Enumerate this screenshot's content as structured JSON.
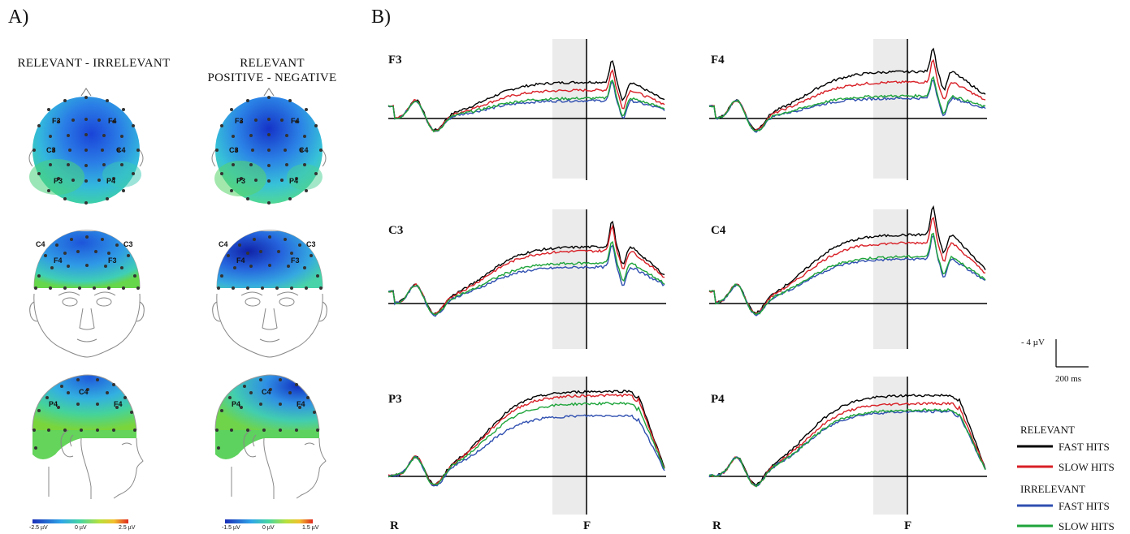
{
  "panel_a": {
    "label": "A)",
    "col1_title": "RELEVANT - IRRELEVANT",
    "col2_title_l1": "RELEVANT",
    "col2_title_l2": "POSITIVE - NEGATIVE",
    "top_electrodes": [
      "F3",
      "F4",
      "C3",
      "C4",
      "P3",
      "P4"
    ],
    "front_electrodes": [
      "C4",
      "C3",
      "F4",
      "F3"
    ],
    "side_electrodes": [
      "C4",
      "P4",
      "F4"
    ],
    "colorbar1": {
      "min": "-2.5 µV",
      "mid": "0 µV",
      "max": "2.5 µV"
    },
    "colorbar2": {
      "min": "-1.5 µV",
      "mid": "0 µV",
      "max": "1.5 µV"
    }
  },
  "panel_b": {
    "label": "B)",
    "plots": [
      "F3",
      "F4",
      "C3",
      "C4",
      "P3",
      "P4"
    ],
    "x_left": "R",
    "x_right": "F",
    "scale_amp": "- 4 µV",
    "scale_time": "200 ms"
  },
  "legend": {
    "group1": "RELEVANT",
    "g1_items": [
      "FAST HITS",
      "SLOW HITS"
    ],
    "group2": "IRRELEVANT",
    "g2_items": [
      "FAST HITS",
      "SLOW HITS"
    ],
    "colors": {
      "rel_fast": "#000000",
      "rel_slow": "#d81f26",
      "irr_fast": "#2f4fb0",
      "irr_slow": "#1ea43a"
    }
  }
}
